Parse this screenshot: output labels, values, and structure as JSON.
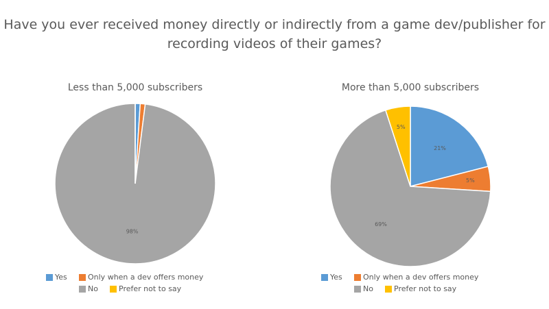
{
  "title": "Have you ever received money directly or indirectly from a game dev/publisher for recording videos of their games?",
  "chart_data": [
    {
      "type": "pie",
      "title": "Less than 5,000 subscribers",
      "categories": [
        "Yes",
        "Only when a dev offers money",
        "No",
        "Prefer not to say"
      ],
      "values": [
        1,
        1,
        98,
        0
      ],
      "value_labels": [
        null,
        null,
        "98%",
        null
      ],
      "colors": [
        "#5b9bd5",
        "#ed7d31",
        "#a5a5a5",
        "#ffc000"
      ]
    },
    {
      "type": "pie",
      "title": "More than 5,000 subscribers",
      "categories": [
        "Yes",
        "Only when a dev offers money",
        "No",
        "Prefer not to say"
      ],
      "values": [
        21,
        5,
        69,
        5
      ],
      "value_labels": [
        "21%",
        "5%",
        "69%",
        "5%"
      ],
      "colors": [
        "#5b9bd5",
        "#ed7d31",
        "#a5a5a5",
        "#ffc000"
      ]
    }
  ]
}
